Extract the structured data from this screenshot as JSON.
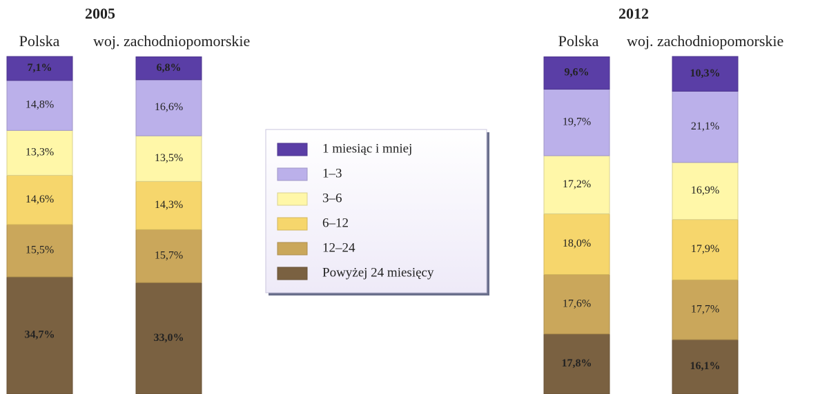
{
  "chart_data": {
    "type": "bar",
    "stacked": true,
    "legend": "center",
    "ylim": [
      0,
      100
    ],
    "panels": [
      {
        "title": "2005",
        "categories": [
          "Polska",
          "woj. zachodniopomorskie"
        ]
      },
      {
        "title": "2012",
        "categories": [
          "Polska",
          "woj. zachodniopomorskie"
        ]
      }
    ],
    "series": [
      {
        "name": "1 miesiąc i mniej",
        "color": "#5a3ea6",
        "values": [
          7.1,
          6.8,
          9.6,
          10.3
        ],
        "value_labels": [
          "7,1%",
          "6,8%",
          "9,6%",
          "10,3%"
        ]
      },
      {
        "name": "1–3",
        "color": "#bbb0ea",
        "values": [
          14.8,
          16.6,
          19.7,
          21.1
        ],
        "value_labels": [
          "14,8%",
          "16,6%",
          "19,7%",
          "21,1%"
        ]
      },
      {
        "name": "3–6",
        "color": "#fff7a8",
        "values": [
          13.3,
          13.5,
          17.2,
          16.9
        ],
        "value_labels": [
          "13,3%",
          "13,5%",
          "17,2%",
          "16,9%"
        ]
      },
      {
        "name": "6–12",
        "color": "#f6d66c",
        "values": [
          14.6,
          14.3,
          18.0,
          17.9
        ],
        "value_labels": [
          "14,6%",
          "14,3%",
          "18,0%",
          "17,9%"
        ]
      },
      {
        "name": "12–24",
        "color": "#caa75b",
        "values": [
          15.5,
          15.7,
          17.6,
          17.7
        ],
        "value_labels": [
          "15,5%",
          "15,7%",
          "17,6%",
          "17,7%"
        ]
      },
      {
        "name": "Powyżej 24 miesięcy",
        "color": "#7a6141",
        "values": [
          34.7,
          33.0,
          17.8,
          16.1
        ],
        "value_labels": [
          "34,7%",
          "33,0%",
          "17,8%",
          "16,1%"
        ]
      }
    ]
  }
}
